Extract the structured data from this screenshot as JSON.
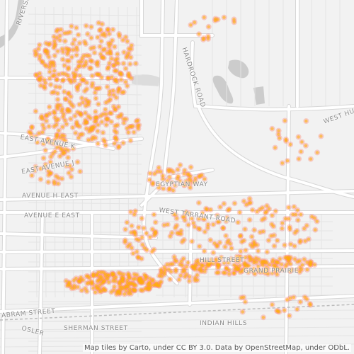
{
  "map": {
    "attribution": "Map tiles by Carto, under CC BY 3.0. Data by OpenStreetMap, under ODbL.",
    "road_labels": {
      "riverside": "RIVERSIDE",
      "hardrock": "HARDROCK ROAD",
      "west_hu": "WEST HU",
      "east_avenue_k": "EAST AVENUE K",
      "east_avenue_j": "EAST AVENUE J",
      "avenue_h_east": "AVENUE H EAST",
      "avenue_e_east": "AVENUE E EAST",
      "egyptian_way": "EGYPTIAN WAY",
      "west_tarrant_road": "WEST TARRANT ROAD",
      "hill_street": "HILL STREET",
      "grand_prairie": "GRAND PRAIRIE",
      "abram_street": "ABRAM STREET",
      "osler": "OSLER",
      "sherman_street": "SHERMAN STREET",
      "indian_hills": "INDIAN HILLS"
    },
    "colors": {
      "background": "#f2f2f2",
      "major_road": "#ffffff",
      "road_casing": "#d6d6d6",
      "water": "#cccccc",
      "point_fill": "#ffb000",
      "point_halo": "#ff7f6e"
    }
  }
}
